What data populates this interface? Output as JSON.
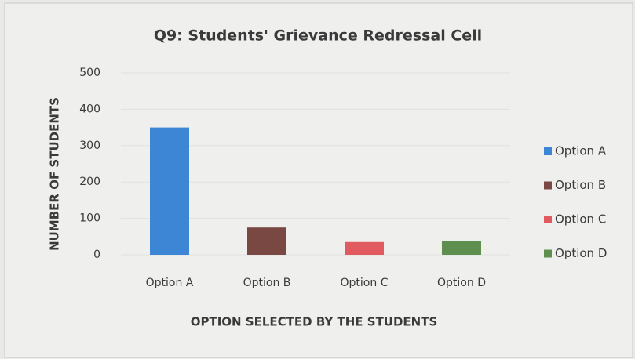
{
  "chart_data": {
    "type": "bar",
    "title": "Q9: Students' Grievance Redressal Cell",
    "xlabel": "OPTION SELECTED BY THE STUDENTS",
    "ylabel": "NUMBER OF STUDENTS",
    "categories": [
      "Option A",
      "Option B",
      "Option C",
      "Option D"
    ],
    "values": [
      350,
      75,
      35,
      38
    ],
    "colors": [
      "#3d86d6",
      "#7a4843",
      "#e05a60",
      "#5f8f4f"
    ],
    "ylim": [
      0,
      500
    ],
    "yticks": [
      0,
      100,
      200,
      300,
      400,
      500
    ],
    "grid": true,
    "legend": "right"
  }
}
